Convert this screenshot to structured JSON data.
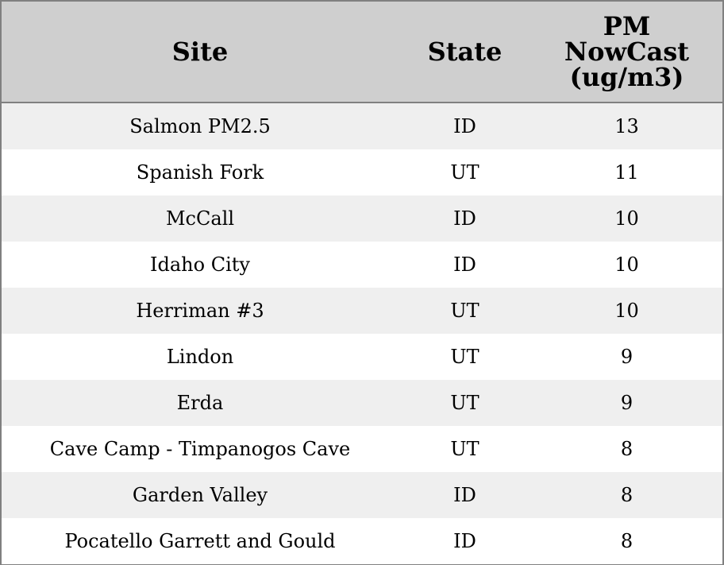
{
  "chart_data": {
    "type": "table",
    "columns": [
      "Site",
      "State",
      "PM NowCast (ug/m3)"
    ],
    "header_lines": [
      [
        "Site"
      ],
      [
        "State"
      ],
      [
        "PM",
        "NowCast",
        "(ug/m3)"
      ]
    ],
    "rows": [
      [
        "Salmon PM2.5",
        "ID",
        "13"
      ],
      [
        "Spanish Fork",
        "UT",
        "11"
      ],
      [
        "McCall",
        "ID",
        "10"
      ],
      [
        "Idaho City",
        "ID",
        "10"
      ],
      [
        "Herriman #3",
        "UT",
        "10"
      ],
      [
        "Lindon",
        "UT",
        "9"
      ],
      [
        "Erda",
        "UT",
        "9"
      ],
      [
        "Cave Camp - Timpanogos Cave",
        "UT",
        "8"
      ],
      [
        "Garden Valley",
        "ID",
        "8"
      ],
      [
        "Pocatello Garrett and Gould",
        "ID",
        "8"
      ]
    ],
    "colors": {
      "header_bg": "#cfcfcf",
      "stripe_bg": "#efefef",
      "border": "#808080"
    }
  }
}
